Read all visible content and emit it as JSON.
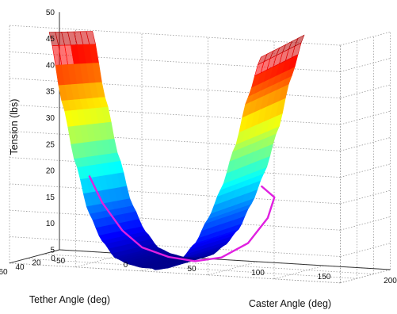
{
  "chart_data": {
    "type": "surface-3d",
    "title": "",
    "zlabel": "Tension (lbs)",
    "xlabel": "Caster Angle (deg)",
    "ylabel": "Tether Angle (deg)",
    "z_ticks": [
      5,
      10,
      15,
      20,
      25,
      30,
      35,
      40,
      45,
      50
    ],
    "x_ticks": [
      "-50",
      "0",
      "50",
      "100",
      "150",
      "200"
    ],
    "y_ticks": [
      "60",
      "40",
      "20",
      "0"
    ],
    "zlim": [
      5,
      50
    ],
    "xlim": [
      -50,
      200
    ],
    "ylim": [
      0,
      60
    ],
    "grid": true,
    "colormap": "jet",
    "surface_profile": {
      "x": [
        -20,
        -10,
        0,
        10,
        20,
        30,
        40,
        50,
        60,
        70,
        80,
        90,
        100,
        110,
        120,
        130,
        140
      ],
      "z": [
        48,
        35,
        24,
        15,
        10,
        7,
        6,
        5.5,
        5.5,
        6,
        8,
        11,
        16,
        22,
        30,
        40,
        48
      ]
    },
    "series": [
      {
        "color": "#e020e0",
        "x": [
          -20,
          -10,
          5,
          20,
          40,
          60,
          80,
          100,
          115,
          120,
          110
        ],
        "z": [
          20,
          15,
          10,
          7,
          5.5,
          5,
          6,
          9,
          14,
          18,
          20
        ]
      }
    ]
  }
}
